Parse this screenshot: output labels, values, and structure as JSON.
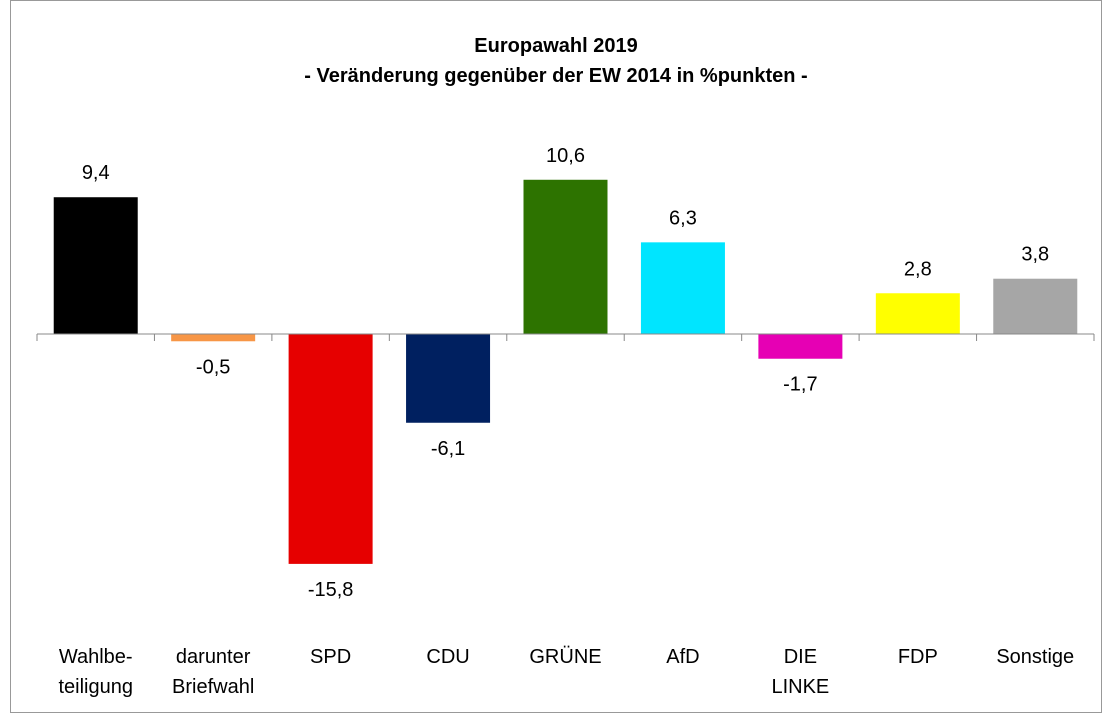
{
  "chart_data": {
    "type": "bar",
    "title": "Europawahl 2019",
    "subtitle": "- Veränderung gegenüber der EW 2014 in %punkten -",
    "categories": [
      "Wahlbe-\nteiligung",
      "darunter\nBriefwahl",
      "SPD",
      "CDU",
      "GRÜNE",
      "AfD",
      "DIE\nLINKE",
      "FDP",
      "Sonstige"
    ],
    "values": [
      9.4,
      -0.5,
      -15.8,
      -6.1,
      10.6,
      6.3,
      -1.7,
      2.8,
      3.8
    ],
    "value_labels": [
      "9,4",
      "-0,5",
      "-15,8",
      "-6,1",
      "10,6",
      "6,3",
      "-1,7",
      "2,8",
      "3,8"
    ],
    "colors": [
      "#000000",
      "#f79646",
      "#e60000",
      "#002060",
      "#2d7300",
      "#00e5ff",
      "#e600b4",
      "#ffff00",
      "#a6a6a6"
    ]
  }
}
